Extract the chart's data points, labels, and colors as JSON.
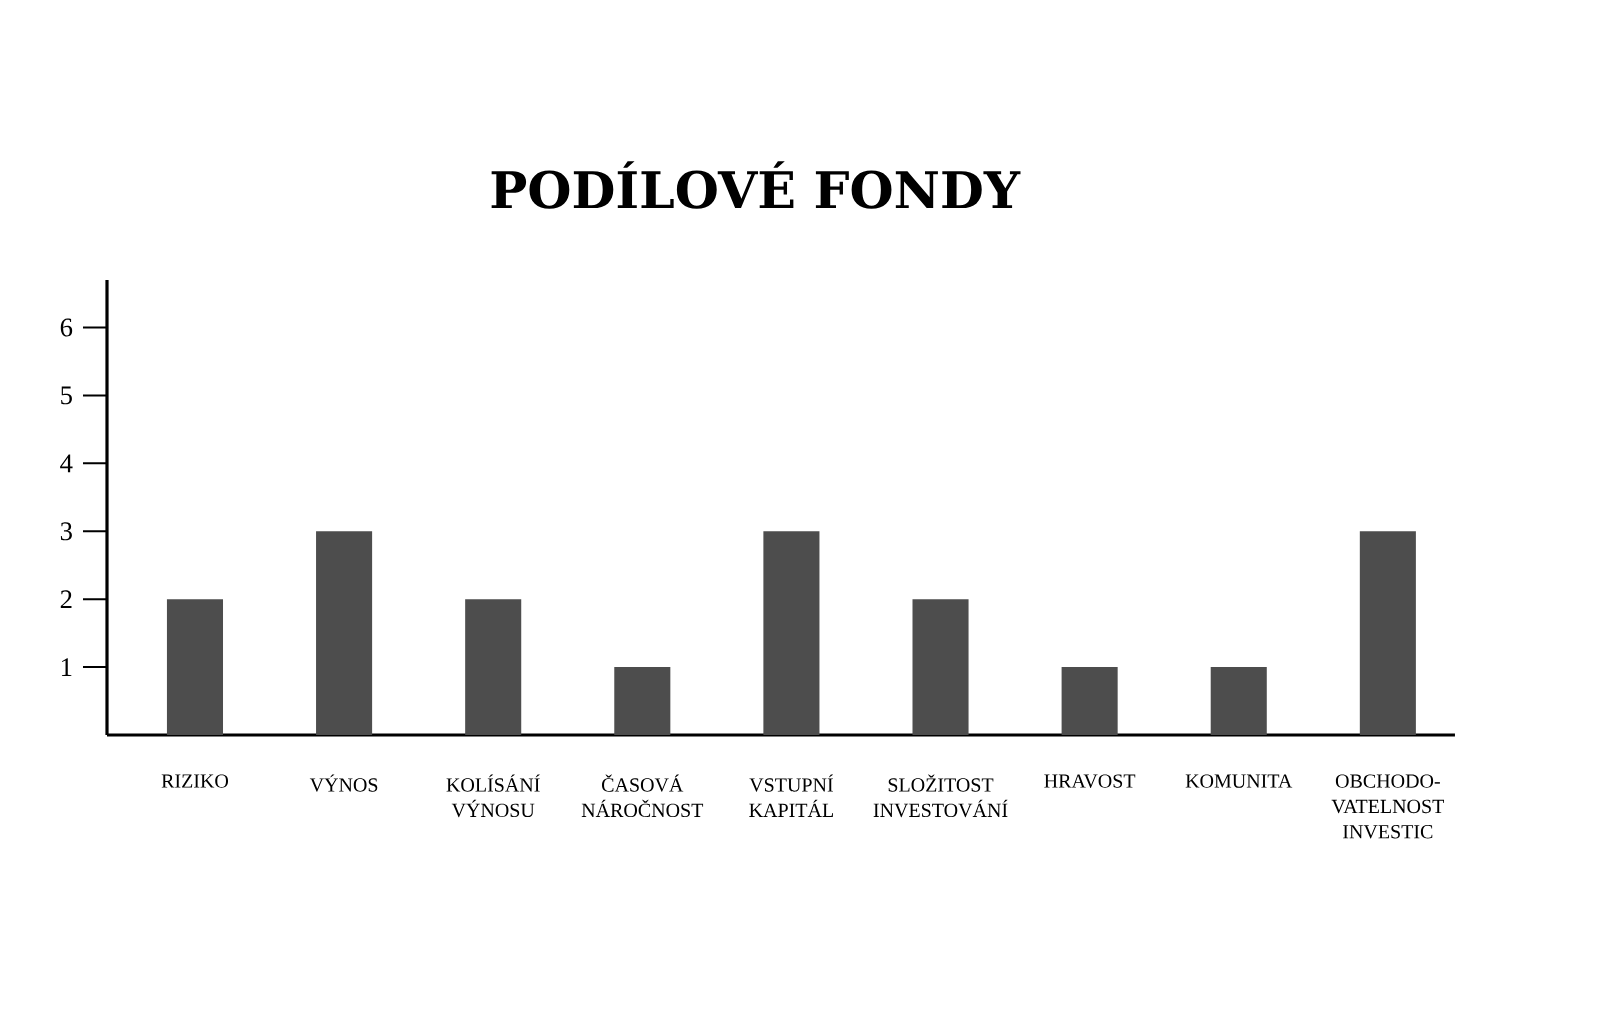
{
  "chart_data": {
    "type": "bar",
    "title": "PODÍLOVÉ FONDY",
    "categories": [
      "RIZIKO",
      "VÝNOS",
      "KOLÍSÁNÍ VÝNOSU",
      "ČASOVÁ NÁROČNOST",
      "VSTUPNÍ KAPITÁL",
      "SLOŽITOST INVESTOVÁNÍ",
      "HRAVOST",
      "KOMUNITA",
      "OBCHODO-VATELNOST INVESTIC"
    ],
    "values": [
      2,
      3,
      2,
      1,
      3,
      2,
      1,
      1,
      3
    ],
    "color": "#4d4d4d",
    "ylim": [
      0,
      6.7
    ],
    "yticks": [
      1,
      2,
      3,
      4,
      5,
      6
    ]
  }
}
